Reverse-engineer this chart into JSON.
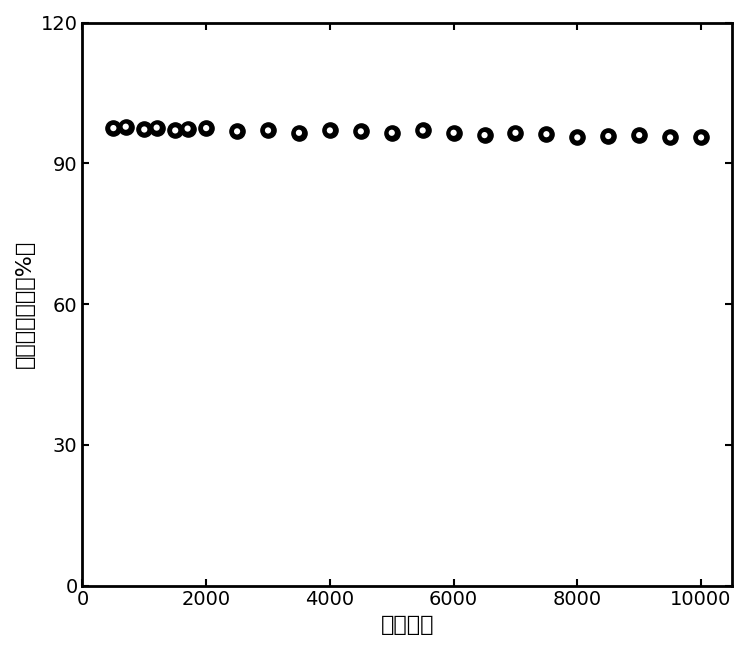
{
  "x_values": [
    500,
    700,
    1000,
    1200,
    1500,
    1700,
    2000,
    2500,
    3000,
    3500,
    4000,
    4500,
    5000,
    5500,
    6000,
    6500,
    7000,
    7500,
    8000,
    8500,
    9000,
    9500,
    10000
  ],
  "y_values": [
    97.5,
    97.8,
    97.2,
    97.6,
    97.0,
    97.4,
    97.5,
    96.8,
    97.0,
    96.5,
    97.0,
    96.8,
    96.5,
    97.0,
    96.5,
    96.0,
    96.5,
    96.2,
    95.5,
    95.8,
    96.0,
    95.5,
    95.5
  ],
  "xlabel": "循环次数",
  "ylabel": "比电容保持率（%）",
  "xlim": [
    0,
    10500
  ],
  "ylim": [
    0,
    120
  ],
  "xticks": [
    0,
    2000,
    4000,
    6000,
    8000,
    10000
  ],
  "yticks": [
    0,
    30,
    60,
    90,
    120
  ],
  "marker_color": "black",
  "marker_size": 120,
  "marker_edge_width": 1.0,
  "highlight_size": 20,
  "background_color": "#ffffff",
  "figure_width": 7.5,
  "figure_height": 6.5,
  "spine_linewidth": 2.0,
  "tick_labelsize": 14,
  "axis_labelsize": 16
}
